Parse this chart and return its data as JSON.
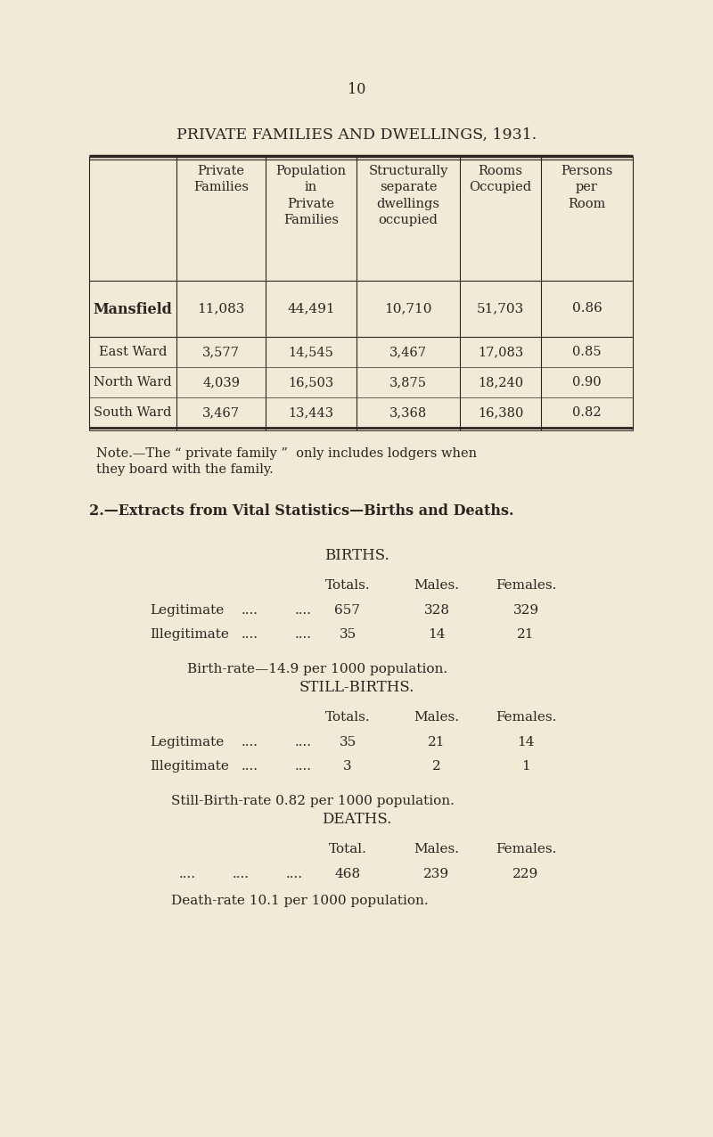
{
  "bg_color": "#f0ead6",
  "text_color": "#2a2520",
  "page_number": "10",
  "main_title": "PRIVATE FAMILIES AND DWELLINGS, 1931.",
  "note_text": "Note.—The “ private family ”  only includes lodgers when\nthey board with the family.",
  "section2_title": "2.—Extracts from Vital Statistics—Births and Deaths.",
  "births_title": "BIRTHS.",
  "births_rows": [
    [
      "Legitimate",
      "657",
      "328",
      "329"
    ],
    [
      "Illegitimate",
      "35",
      "14",
      "21"
    ]
  ],
  "birth_rate": "Birth-rate—14.9 per 1000 population.",
  "stillbirths_title": "STILL-BIRTHS.",
  "stillbirths_rows": [
    [
      "Legitimate",
      "35",
      "21",
      "14"
    ],
    [
      "Illegitimate",
      "3",
      "2",
      "1"
    ]
  ],
  "stillbirth_rate": "Still-Birth-rate 0.82 per 1000 population.",
  "deaths_title": "DEATHS.",
  "deaths_row_dots": [
    "....",
    "....",
    "...."
  ],
  "deaths_row_vals": [
    "468",
    "239",
    "229"
  ],
  "death_rate": "Death-rate 10.1 per 1000 population.",
  "table_col_headers": [
    "Private\nFamilies",
    "Population\nin\nPrivate\nFamilies",
    "Structurally\nseparate\ndwellings\noccupied",
    "Rooms\nOccupied",
    "Persons\nper\nRoom"
  ],
  "table_rows": [
    [
      "Mansfield",
      "11,083",
      "44,491",
      "10,710",
      "51,703",
      "0.86"
    ],
    [
      "East Ward",
      "3,577",
      "14,545",
      "3,467",
      "17,083",
      "0.85"
    ],
    [
      "North Ward",
      "4,039",
      "16,503",
      "3,875",
      "18,240",
      "0.90"
    ],
    [
      "South Ward",
      "3,467",
      "13,443",
      "3,368",
      "16,380",
      "0.82"
    ]
  ]
}
